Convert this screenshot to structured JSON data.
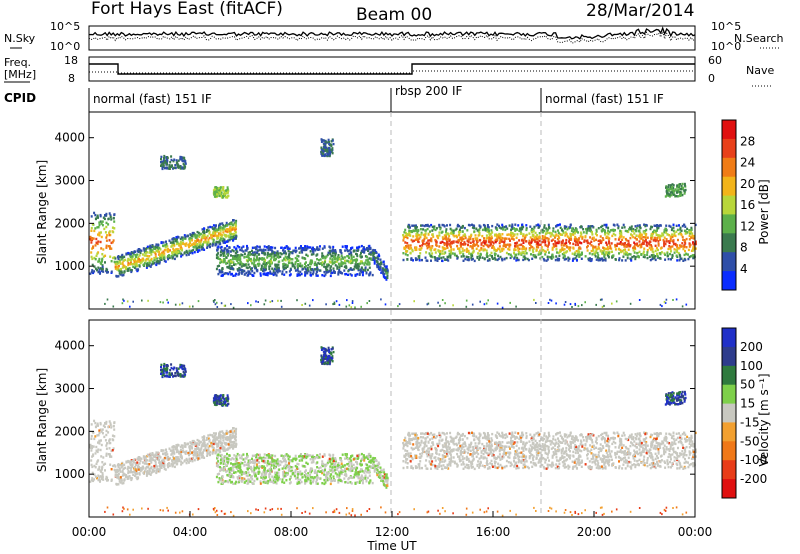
{
  "header": {
    "station": "Fort Hays East (fitACF)",
    "beam": "Beam 00",
    "date": "28/Mar/2014"
  },
  "top_panels": {
    "nsky_label": "N.Sky",
    "nsearch_label": "N.Search",
    "freq_label_1": "Freq.",
    "freq_label_2": "[MHz]",
    "nave_label": "Nave",
    "cpid_label": "CPID",
    "noise_ticks": [
      "10^5",
      "10^0"
    ],
    "freq_ticks": [
      "18",
      "8"
    ],
    "nave_ticks": [
      "60",
      "0"
    ],
    "cpid_segments": [
      "normal (fast) 151 IF",
      "rbsp 200 IF",
      "normal (fast) 151 IF"
    ]
  },
  "colors": {
    "power_scale": [
      "#0a2cff",
      "#2f4fa8",
      "#3a7a4e",
      "#5cb04a",
      "#b8d63a",
      "#f2b41a",
      "#f07c16",
      "#e8401a",
      "#e01010"
    ],
    "velocity_scale": [
      "#2030c8",
      "#2e3c8c",
      "#2f7a3e",
      "#7ed04a",
      "#c8c8c0",
      "#f2a030",
      "#f07818",
      "#e83c18",
      "#e01010"
    ],
    "ground_scatter": "#c8c8c0"
  },
  "chart_data": [
    {
      "type": "heatmap",
      "name": "power",
      "ylabel": "Slant Range [km]",
      "yticks": [
        "1000",
        "2000",
        "3000",
        "4000"
      ],
      "ylim": [
        0,
        4600
      ],
      "xlim": [
        0,
        24
      ],
      "colorbar_label": "Power [dB]",
      "colorbar_ticks": [
        "4",
        "8",
        "12",
        "16",
        "20",
        "24",
        "28"
      ],
      "colorbar_range": [
        0,
        32
      ],
      "bands": [
        {
          "t0": 0.0,
          "t1": 1.0,
          "r0": 850,
          "r1": 2300,
          "peak": 26
        },
        {
          "t0": 1.0,
          "t1": 5.8,
          "r0": 750,
          "r1": 2200,
          "peak": 22
        },
        {
          "t0": 5.0,
          "t1": 11.2,
          "r0": 800,
          "r1": 1500,
          "peak": 14
        },
        {
          "t0": 11.2,
          "t1": 11.8,
          "r0": 650,
          "r1": 1500,
          "peak": 10
        },
        {
          "t0": 12.4,
          "t1": 24.0,
          "r0": 1150,
          "r1": 2000,
          "peak": 28
        }
      ]
    },
    {
      "type": "heatmap",
      "name": "velocity",
      "xlabel": "Time UT",
      "ylabel": "Slant Range [km]",
      "xticks": [
        "00:00",
        "04:00",
        "08:00",
        "12:00",
        "16:00",
        "20:00",
        "00:00"
      ],
      "yticks": [
        "1000",
        "2000",
        "3000",
        "4000"
      ],
      "ylim": [
        0,
        4600
      ],
      "xlim": [
        0,
        24
      ],
      "colorbar_label": "Velocity [m s⁻¹]",
      "colorbar_ticks": [
        "200",
        "100",
        "50",
        "15",
        "-15",
        "-50",
        "-100",
        "-200"
      ],
      "colorbar_range": [
        -250,
        250
      ]
    }
  ]
}
